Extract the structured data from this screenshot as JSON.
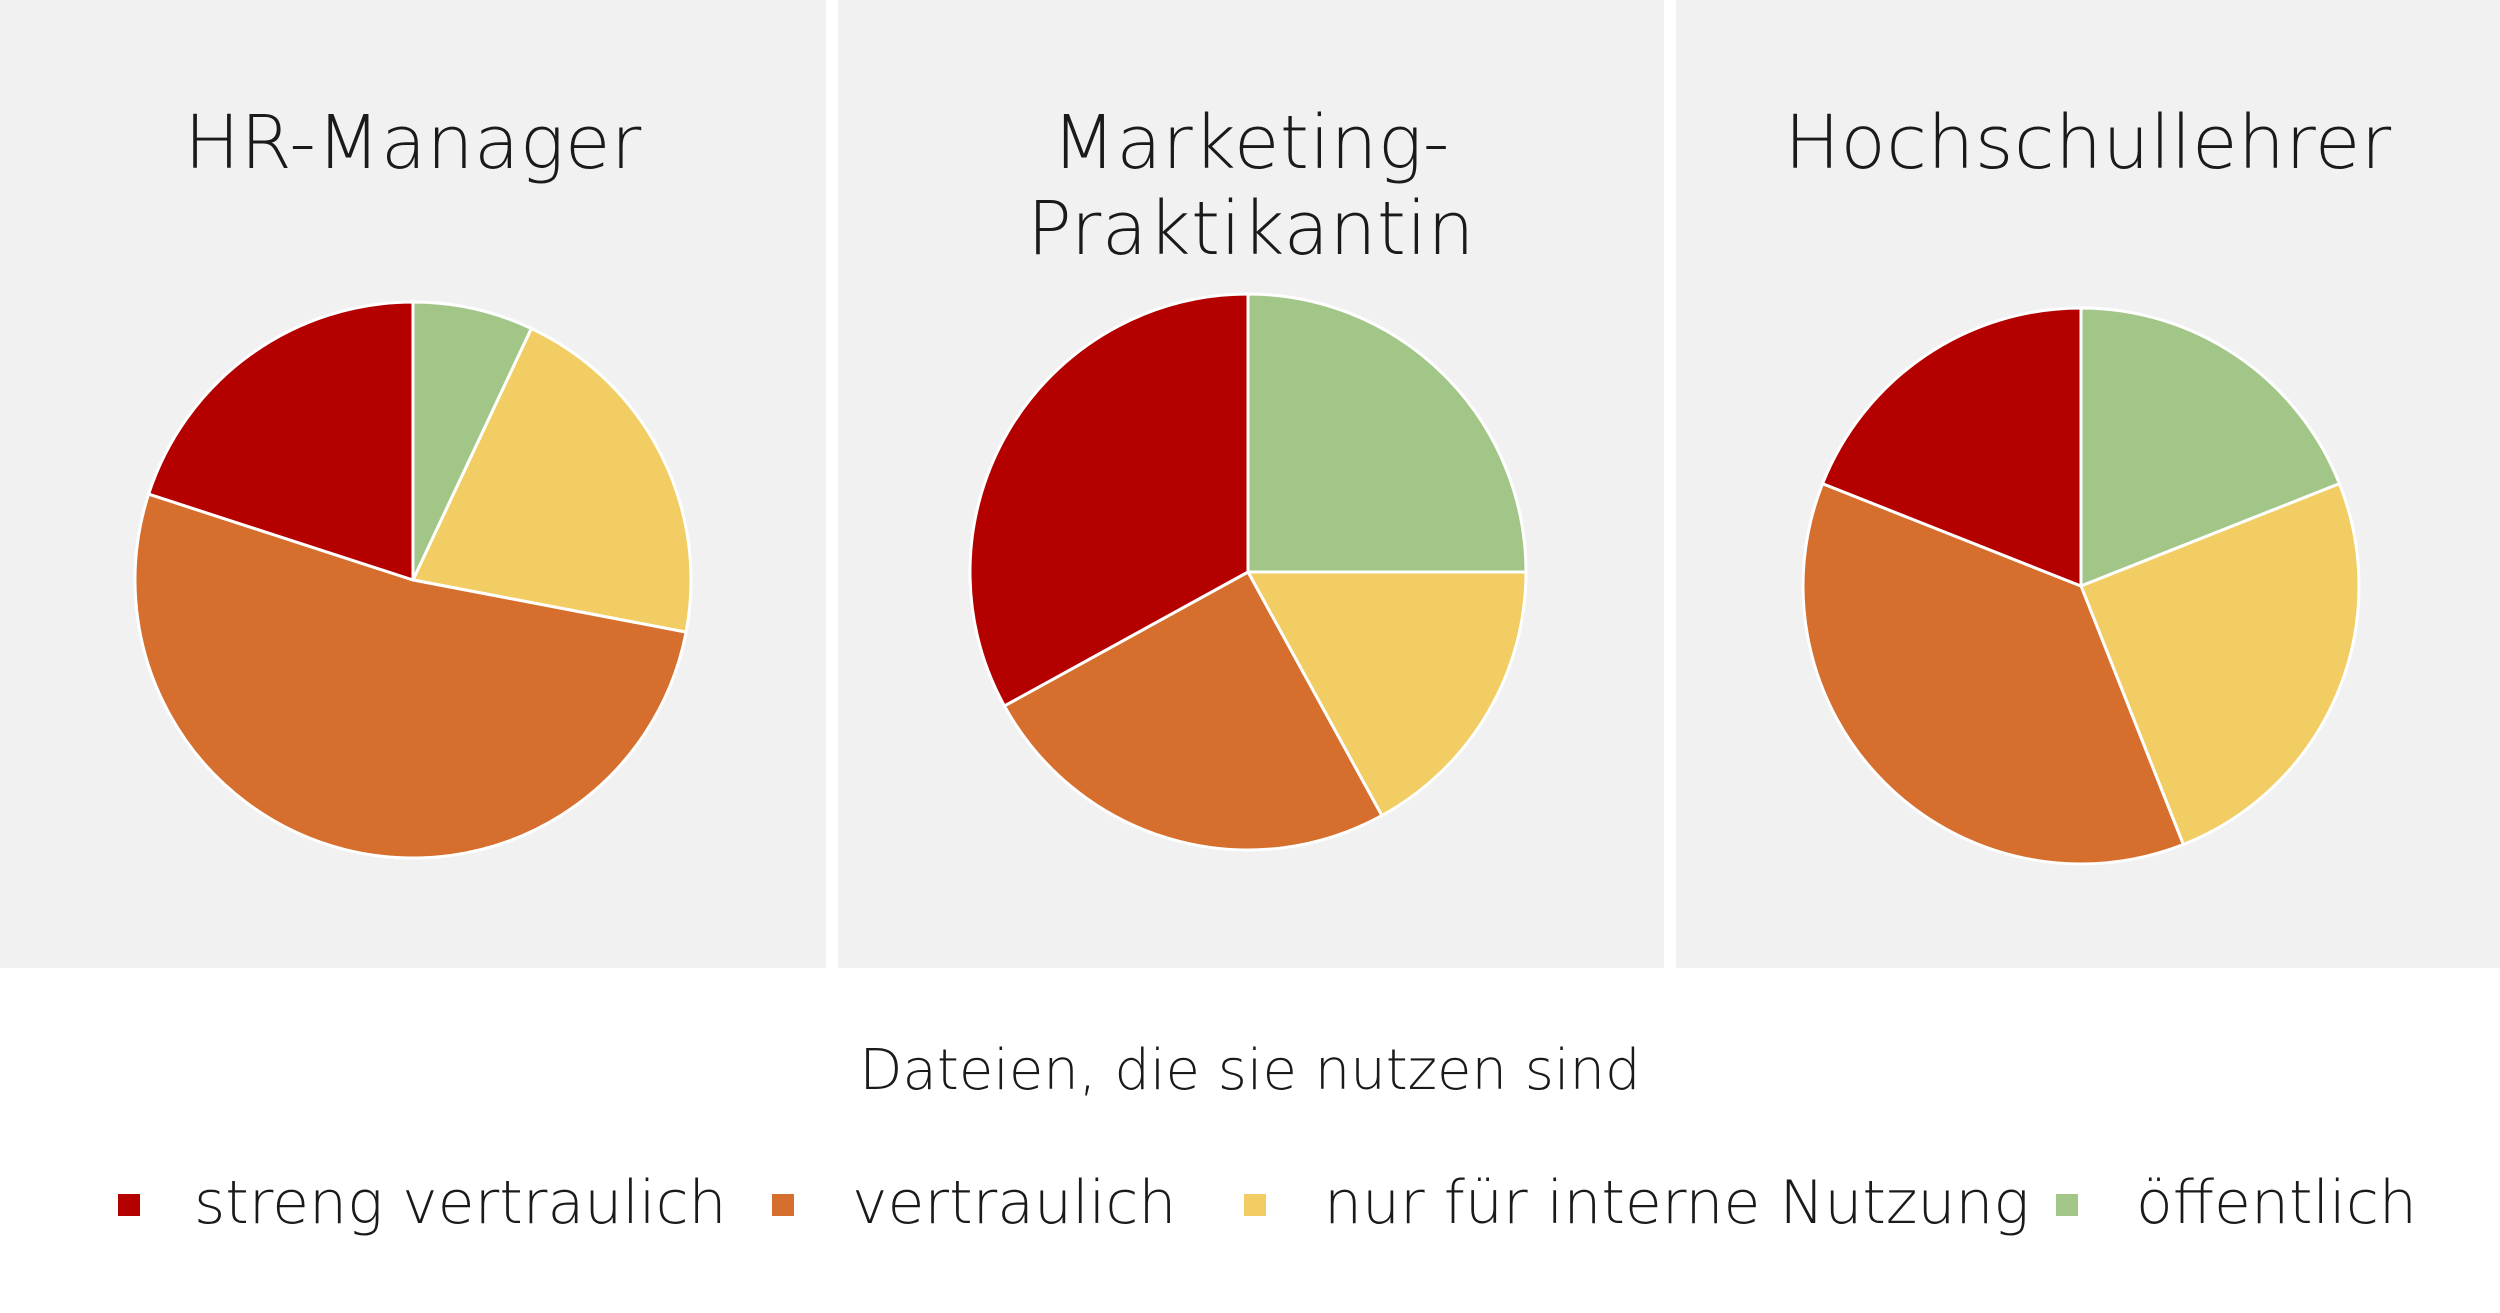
{
  "legend": [
    {
      "label": "streng vertraulich",
      "color": "#b50000"
    },
    {
      "label": "vertraulich",
      "color": "#d66f2d"
    },
    {
      "label": "nur für interne Nutzung",
      "color": "#f2cd63"
    },
    {
      "label": "öffentlich",
      "color": "#a2c688"
    }
  ],
  "caption": "Dateien, die sie nutzen sind",
  "chart_data": [
    {
      "type": "pie",
      "title": "HR-Manager",
      "categories": [
        "streng vertraulich",
        "vertraulich",
        "nur für interne Nutzung",
        "öffentlich"
      ],
      "values": [
        20,
        52,
        21,
        7
      ],
      "order": "clockwise from top, starting with öffentlich"
    },
    {
      "type": "pie",
      "title": "Marketing-Praktikantin",
      "categories": [
        "streng vertraulich",
        "vertraulich",
        "nur für interne Nutzung",
        "öffentlich"
      ],
      "values": [
        33,
        25,
        17,
        25
      ],
      "order": "clockwise from top, starting with öffentlich"
    },
    {
      "type": "pie",
      "title": "Hochschullehrer",
      "categories": [
        "streng vertraulich",
        "vertraulich",
        "nur für interne Nutzung",
        "öffentlich"
      ],
      "values": [
        19,
        37,
        25,
        19
      ],
      "order": "clockwise from top, starting with öffentlich"
    }
  ]
}
